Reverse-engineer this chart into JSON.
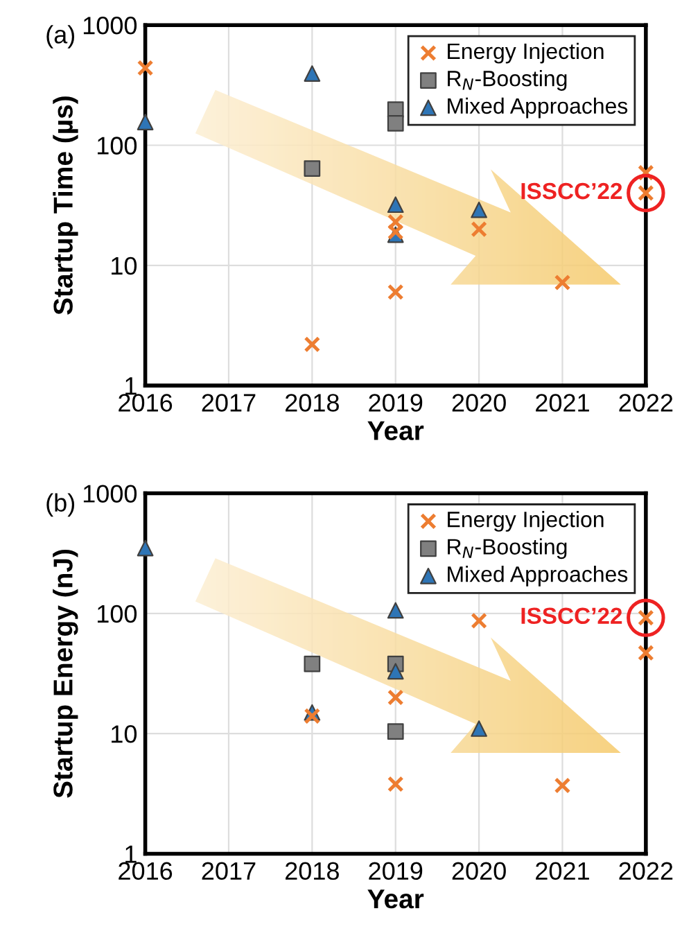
{
  "chart_data": [
    {
      "type": "scatter",
      "title": "(a)",
      "xlabel": "Year",
      "ylabel": "Startup Time (µs)",
      "log": "y",
      "grid": true,
      "legend": "top right",
      "xlim": [
        2016,
        2022
      ],
      "xticks": [
        2016,
        2017,
        2018,
        2019,
        2020,
        2021,
        2022
      ],
      "ylim": [
        1,
        1000
      ],
      "yticks": [
        1,
        10,
        100,
        1000
      ],
      "annotations": [
        {
          "text": "ISSCC’22",
          "x": 2022,
          "y": 40
        }
      ],
      "series": [
        {
          "name": "Energy Injection",
          "color": "#ed7d31",
          "marker": "cross",
          "x": [
            2016,
            2018,
            2019,
            2019,
            2019,
            2020,
            2021,
            2022,
            2022
          ],
          "values": [
            440,
            2.2,
            23,
            19,
            6,
            20,
            7.2,
            59,
            40
          ]
        },
        {
          "name": "R$_{N}$-Boosting",
          "color": "#808080",
          "marker": "square",
          "x": [
            2018,
            2019,
            2019
          ],
          "values": [
            64,
            198,
            152
          ]
        },
        {
          "name": "Mixed Approaches",
          "color": "#2e75b6",
          "marker": "triangle",
          "x": [
            2016,
            2018,
            2019,
            2019,
            2020
          ],
          "values": [
            156,
            395,
            32,
            18,
            29
          ]
        }
      ]
    },
    {
      "type": "scatter",
      "title": "(b)",
      "xlabel": "Year",
      "ylabel": "Startup Energy (nJ)",
      "log": "y",
      "grid": true,
      "legend": "top right",
      "xlim": [
        2016,
        2022
      ],
      "xticks": [
        2016,
        2017,
        2018,
        2019,
        2020,
        2021,
        2022
      ],
      "ylim": [
        1,
        1000
      ],
      "yticks": [
        1,
        10,
        100,
        1000
      ],
      "annotations": [
        {
          "text": "ISSCC’22",
          "x": 2022,
          "y": 92
        }
      ],
      "series": [
        {
          "name": "Energy Injection",
          "color": "#ed7d31",
          "marker": "cross",
          "x": [
            2018,
            2019,
            2019,
            2020,
            2021,
            2022,
            2022
          ],
          "values": [
            14,
            20,
            3.8,
            87,
            3.7,
            92,
            47
          ]
        },
        {
          "name": "R$_{N}$-Boosting",
          "color": "#808080",
          "marker": "square",
          "x": [
            2018,
            2019,
            2019
          ],
          "values": [
            38,
            38,
            10.4
          ]
        },
        {
          "name": "Mixed Approaches",
          "color": "#2e75b6",
          "marker": "triangle",
          "x": [
            2016,
            2018,
            2019,
            2019,
            2020
          ],
          "values": [
            350,
            15,
            106,
            33,
            11
          ]
        }
      ]
    }
  ]
}
